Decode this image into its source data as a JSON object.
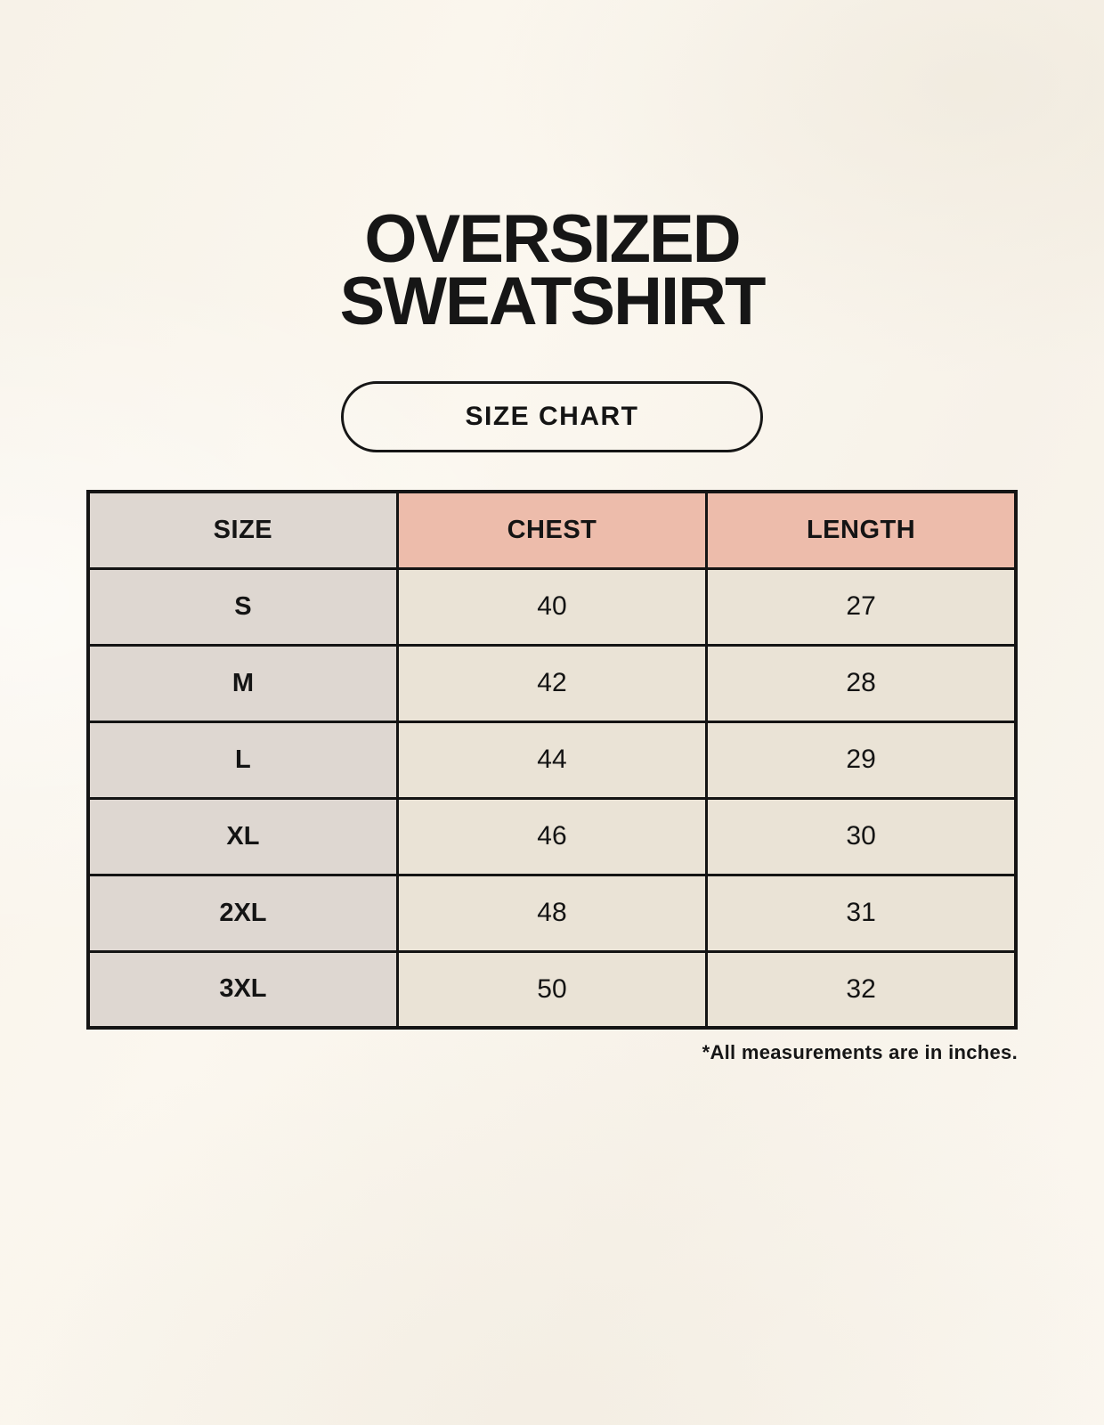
{
  "header": {
    "title_line1": "OVERSIZED",
    "title_line2": "SWEATSHIRT",
    "badge_label": "SIZE CHART"
  },
  "chart_data": {
    "type": "table",
    "title": "OVERSIZED SWEATSHIRT",
    "subtitle": "SIZE CHART",
    "columns": [
      "SIZE",
      "CHEST",
      "LENGTH"
    ],
    "rows": [
      [
        "S",
        "40",
        "27"
      ],
      [
        "M",
        "42",
        "28"
      ],
      [
        "L",
        "44",
        "29"
      ],
      [
        "XL",
        "46",
        "30"
      ],
      [
        "2XL",
        "48",
        "31"
      ],
      [
        "3XL",
        "50",
        "32"
      ]
    ],
    "units_note": "*All measurements are in inches."
  },
  "colors": {
    "page_background": "#f9f5ed",
    "size_column_bg": "#ded7d1",
    "measure_header_bg": "#edbcab",
    "value_cell_bg": "#eae3d6",
    "border": "#141414",
    "text": "#161616"
  }
}
